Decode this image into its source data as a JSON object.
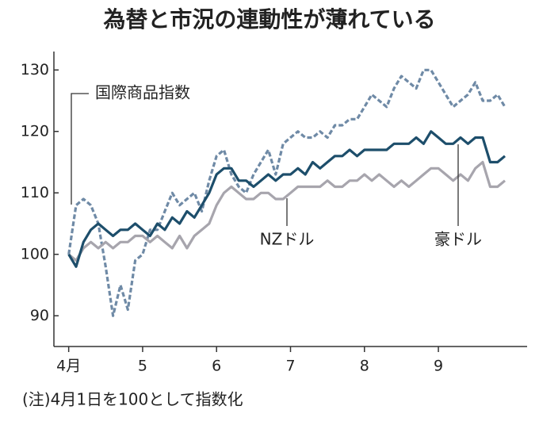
{
  "chart_data": {
    "type": "line",
    "title": "為替と市況の連動性が薄れている",
    "note": "(注)4月1日を100として指数化",
    "x": [
      4.0,
      4.1,
      4.2,
      4.3,
      4.4,
      4.5,
      4.6,
      4.7,
      4.8,
      4.9,
      5.0,
      5.1,
      5.2,
      5.3,
      5.4,
      5.5,
      5.6,
      5.7,
      5.8,
      5.9,
      6.0,
      6.1,
      6.2,
      6.3,
      6.4,
      6.5,
      6.6,
      6.7,
      6.8,
      6.9,
      7.0,
      7.1,
      7.2,
      7.3,
      7.4,
      7.5,
      7.6,
      7.7,
      7.8,
      7.9,
      8.0,
      8.1,
      8.2,
      8.3,
      8.4,
      8.5,
      8.6,
      8.7,
      8.8,
      8.9,
      9.0,
      9.1,
      9.2,
      9.3,
      9.4,
      9.5,
      9.6,
      9.7,
      9.8,
      9.9
    ],
    "series": [
      {
        "name": "国際商品指数",
        "color": "#6f8aa6",
        "dashed": true,
        "values": [
          100,
          108,
          109,
          108,
          105,
          98,
          90,
          95,
          91,
          99,
          100,
          104,
          104,
          107,
          110,
          108,
          109,
          110,
          107,
          112,
          116,
          117,
          113,
          111,
          110,
          113,
          115,
          117,
          113,
          118,
          119,
          120,
          119,
          119,
          120,
          119,
          121,
          121,
          122,
          122,
          124,
          126,
          125,
          124,
          127,
          129,
          128,
          127,
          130,
          130,
          128,
          126,
          124,
          125,
          126,
          128,
          125,
          125,
          126,
          124
        ]
      },
      {
        "name": "豪ドル",
        "color": "#1d4e6b",
        "dashed": false,
        "values": [
          100,
          98,
          102,
          104,
          105,
          104,
          103,
          104,
          104,
          105,
          104,
          103,
          105,
          104,
          106,
          105,
          107,
          106,
          108,
          110,
          113,
          114,
          114,
          112,
          112,
          111,
          112,
          113,
          112,
          113,
          113,
          114,
          113,
          115,
          114,
          115,
          116,
          116,
          117,
          116,
          117,
          117,
          117,
          117,
          118,
          118,
          118,
          119,
          118,
          120,
          119,
          118,
          118,
          119,
          118,
          119,
          119,
          115,
          115,
          116
        ]
      },
      {
        "name": "NZドル",
        "color": "#a7a5ad",
        "dashed": false,
        "values": [
          100,
          99,
          101,
          102,
          101,
          102,
          101,
          102,
          102,
          103,
          103,
          102,
          103,
          102,
          101,
          103,
          101,
          103,
          104,
          105,
          108,
          110,
          111,
          110,
          109,
          109,
          110,
          110,
          109,
          109,
          110,
          111,
          111,
          111,
          111,
          112,
          111,
          111,
          112,
          112,
          113,
          112,
          113,
          112,
          111,
          112,
          111,
          112,
          113,
          114,
          114,
          113,
          112,
          113,
          112,
          114,
          115,
          111,
          111,
          112
        ]
      }
    ],
    "xlim": [
      3.8,
      10.2
    ],
    "xticks": [
      {
        "value": 4,
        "label": "4月"
      },
      5,
      6,
      7,
      8,
      9
    ],
    "ylim": [
      85,
      133
    ],
    "yticks": [
      90,
      100,
      110,
      120,
      130
    ],
    "grid": false
  }
}
